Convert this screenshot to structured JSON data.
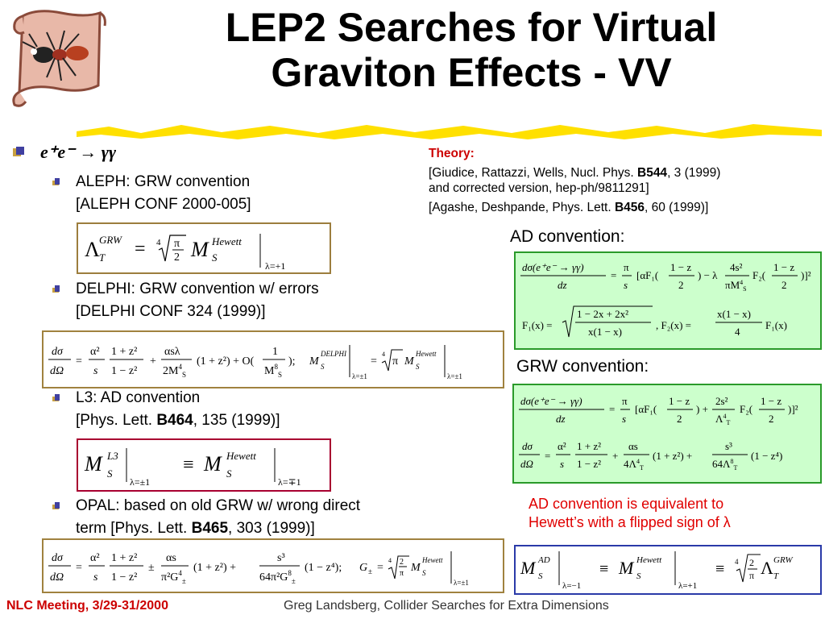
{
  "title": {
    "line1": "LEP2 Searches for Virtual",
    "line2": "Graviton Effects - VV"
  },
  "colors": {
    "accent": "#cc0000",
    "highlight_yellow": "#ffe000",
    "green_box": "#ccffcc"
  },
  "icons": {
    "logo": "ant-on-scroll-icon",
    "bullet": "stacked-square-bullet-icon"
  },
  "process": "e⁺e⁻ → γγ",
  "experiments": [
    {
      "line1": "ALEPH: GRW convention",
      "line2": "[ALEPH CONF 2000-005]"
    },
    {
      "line1": "DELPHI: GRW convention w/ errors",
      "line2": "[DELPHI CONF 324 (1999)]"
    },
    {
      "line1": "L3: AD convention",
      "line2_pre": "[Phys. Lett. ",
      "line2_bold": "B464",
      "line2_post": ", 135 (1999)]"
    },
    {
      "line1": "OPAL: based on old GRW w/ wrong direct",
      "line2_pre": "term [Phys. Lett. ",
      "line2_bold": "B465",
      "line2_post": ", 303 (1999)]"
    }
  ],
  "theory": {
    "heading": "Theory:",
    "ref1_pre": "[Giudice, Rattazzi, Wells, Nucl. Phys. ",
    "ref1_bold": "B544",
    "ref1_post": ", 3 (1999)",
    "ref1_line2": "and corrected version, hep-ph/9811291]",
    "ref2_pre": "[Agashe, Deshpande, Phys. Lett. ",
    "ref2_bold": "B456",
    "ref2_post": ", 60 (1999)]"
  },
  "ad_convention_label": "AD convention:",
  "grw_convention_label": "GRW convention:",
  "equivalence_note": {
    "line1": "AD convention is equivalent to",
    "line2": "Hewett’s with a flipped sign of λ"
  },
  "footer": {
    "left": "NLC Meeting, 3/29-31/2000",
    "right": "Greg Landsberg, Collider Searches for Extra Dimensions"
  }
}
